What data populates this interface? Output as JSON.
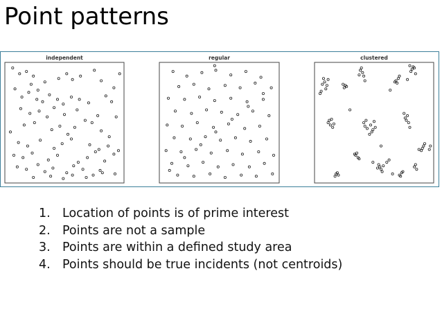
{
  "slide": {
    "title": "Point patterns",
    "bullets": [
      {
        "number": "1.",
        "text": "Location of points is of prime interest"
      },
      {
        "number": "2.",
        "text": "Points are not a sample"
      },
      {
        "number": "3.",
        "text": "Points are within a defined study area"
      },
      {
        "number": "4.",
        "text": "Points should be true incidents  (not centroids)"
      }
    ]
  },
  "chart_data": [
    {
      "type": "scatter",
      "title": "independent",
      "xlim": [
        0,
        1
      ],
      "ylim": [
        0,
        1
      ],
      "x": [
        0.05,
        0.11,
        0.17,
        0.23,
        0.21,
        0.27,
        0.33,
        0.45,
        0.52,
        0.57,
        0.64,
        0.76,
        0.82,
        0.98,
        0.93,
        0.07,
        0.13,
        0.19,
        0.26,
        0.31,
        0.37,
        0.44,
        0.49,
        0.56,
        0.63,
        0.71,
        0.86,
        0.91,
        0.12,
        0.2,
        0.28,
        0.35,
        0.41,
        0.5,
        0.61,
        0.68,
        0.79,
        0.95,
        0.03,
        0.15,
        0.24,
        0.39,
        0.46,
        0.53,
        0.59,
        0.74,
        0.82,
        0.89,
        0.1,
        0.18,
        0.29,
        0.41,
        0.48,
        0.56,
        0.72,
        0.8,
        0.88,
        0.97,
        0.06,
        0.14,
        0.22,
        0.36,
        0.44,
        0.62,
        0.7,
        0.77,
        0.85,
        0.93,
        0.09,
        0.17,
        0.27,
        0.33,
        0.4,
        0.52,
        0.58,
        0.66,
        0.75,
        0.81,
        0.94,
        0.23,
        0.38,
        0.49,
        0.57,
        0.69,
        0.83
      ],
      "y": [
        0.97,
        0.92,
        0.94,
        0.9,
        0.83,
        0.78,
        0.85,
        0.88,
        0.92,
        0.87,
        0.9,
        0.95,
        0.86,
        0.92,
        0.8,
        0.79,
        0.72,
        0.76,
        0.7,
        0.68,
        0.74,
        0.7,
        0.66,
        0.72,
        0.7,
        0.67,
        0.73,
        0.68,
        0.62,
        0.58,
        0.6,
        0.55,
        0.63,
        0.57,
        0.61,
        0.52,
        0.56,
        0.55,
        0.42,
        0.48,
        0.5,
        0.44,
        0.47,
        0.4,
        0.46,
        0.5,
        0.43,
        0.38,
        0.33,
        0.3,
        0.35,
        0.28,
        0.32,
        0.36,
        0.31,
        0.27,
        0.3,
        0.26,
        0.22,
        0.2,
        0.24,
        0.18,
        0.22,
        0.16,
        0.2,
        0.25,
        0.17,
        0.23,
        0.12,
        0.1,
        0.14,
        0.08,
        0.11,
        0.07,
        0.13,
        0.1,
        0.05,
        0.09,
        0.06,
        0.03,
        0.04,
        0.02,
        0.05,
        0.03,
        0.07
      ]
    },
    {
      "type": "scatter",
      "title": "regular",
      "xlim": [
        0,
        1
      ],
      "ylim": [
        0,
        1
      ],
      "x": [
        0.1,
        0.22,
        0.35,
        0.47,
        0.6,
        0.73,
        0.86,
        0.15,
        0.28,
        0.41,
        0.55,
        0.68,
        0.81,
        0.95,
        0.06,
        0.2,
        0.33,
        0.46,
        0.6,
        0.74,
        0.88,
        0.12,
        0.26,
        0.39,
        0.52,
        0.66,
        0.79,
        0.93,
        0.05,
        0.18,
        0.31,
        0.45,
        0.58,
        0.72,
        0.85,
        0.11,
        0.25,
        0.38,
        0.51,
        0.64,
        0.77,
        0.91,
        0.04,
        0.17,
        0.3,
        0.43,
        0.57,
        0.7,
        0.84,
        0.97,
        0.09,
        0.23,
        0.36,
        0.49,
        0.62,
        0.76,
        0.89,
        0.14,
        0.28,
        0.42,
        0.55,
        0.69,
        0.82,
        0.96,
        0.07,
        0.2,
        0.34,
        0.47,
        0.61,
        0.75,
        0.88,
        0.46
      ],
      "y": [
        0.94,
        0.9,
        0.93,
        0.95,
        0.91,
        0.94,
        0.89,
        0.81,
        0.83,
        0.79,
        0.82,
        0.8,
        0.84,
        0.8,
        0.71,
        0.7,
        0.72,
        0.69,
        0.71,
        0.68,
        0.7,
        0.6,
        0.58,
        0.61,
        0.59,
        0.57,
        0.6,
        0.56,
        0.48,
        0.47,
        0.5,
        0.46,
        0.49,
        0.45,
        0.47,
        0.37,
        0.36,
        0.38,
        0.35,
        0.37,
        0.34,
        0.36,
        0.26,
        0.25,
        0.27,
        0.24,
        0.26,
        0.23,
        0.25,
        0.22,
        0.15,
        0.13,
        0.16,
        0.12,
        0.14,
        0.12,
        0.15,
        0.05,
        0.04,
        0.06,
        0.03,
        0.05,
        0.04,
        0.06,
        0.09,
        0.2,
        0.31,
        0.42,
        0.53,
        0.64,
        0.75,
        0.99
      ]
    },
    {
      "type": "scatter",
      "title": "clustered",
      "xlim": [
        0,
        1
      ],
      "ylim": [
        0,
        1
      ],
      "x": [
        0.05,
        0.07,
        0.08,
        0.04,
        0.06,
        0.09,
        0.03,
        0.1,
        0.24,
        0.25,
        0.23,
        0.26,
        0.38,
        0.4,
        0.39,
        0.37,
        0.41,
        0.42,
        0.83,
        0.84,
        0.82,
        0.85,
        0.86,
        0.81,
        0.69,
        0.71,
        0.7,
        0.72,
        0.68,
        0.79,
        0.1,
        0.12,
        0.11,
        0.14,
        0.13,
        0.15,
        0.42,
        0.44,
        0.41,
        0.43,
        0.48,
        0.49,
        0.47,
        0.5,
        0.51,
        0.46,
        0.77,
        0.78,
        0.79,
        0.8,
        0.76,
        0.81,
        0.34,
        0.36,
        0.35,
        0.37,
        0.33,
        0.55,
        0.56,
        0.54,
        0.57,
        0.53,
        0.58,
        0.49,
        0.92,
        0.93,
        0.91,
        0.94,
        0.89,
        0.72,
        0.74,
        0.73,
        0.75,
        0.66,
        0.17,
        0.18,
        0.19,
        0.16,
        0.85,
        0.86,
        0.87,
        0.99,
        0.98,
        0.61,
        0.63,
        0.29,
        0.56,
        0.64
      ],
      "y": [
        0.83,
        0.85,
        0.79,
        0.77,
        0.88,
        0.82,
        0.75,
        0.87,
        0.8,
        0.82,
        0.83,
        0.81,
        0.95,
        0.93,
        0.97,
        0.91,
        0.9,
        0.86,
        0.96,
        0.98,
        0.94,
        0.97,
        0.92,
        0.99,
        0.86,
        0.88,
        0.84,
        0.9,
        0.85,
        0.87,
        0.5,
        0.48,
        0.52,
        0.46,
        0.53,
        0.49,
        0.47,
        0.45,
        0.5,
        0.52,
        0.42,
        0.44,
        0.48,
        0.51,
        0.46,
        0.4,
        0.54,
        0.52,
        0.56,
        0.5,
        0.58,
        0.46,
        0.22,
        0.2,
        0.24,
        0.19,
        0.23,
        0.12,
        0.1,
        0.14,
        0.08,
        0.11,
        0.13,
        0.16,
        0.28,
        0.3,
        0.26,
        0.32,
        0.27,
        0.05,
        0.07,
        0.04,
        0.08,
        0.06,
        0.06,
        0.07,
        0.05,
        0.04,
        0.12,
        0.14,
        0.1,
        0.3,
        0.27,
        0.16,
        0.18,
        0.61,
        0.3,
        0.78
      ]
    }
  ]
}
